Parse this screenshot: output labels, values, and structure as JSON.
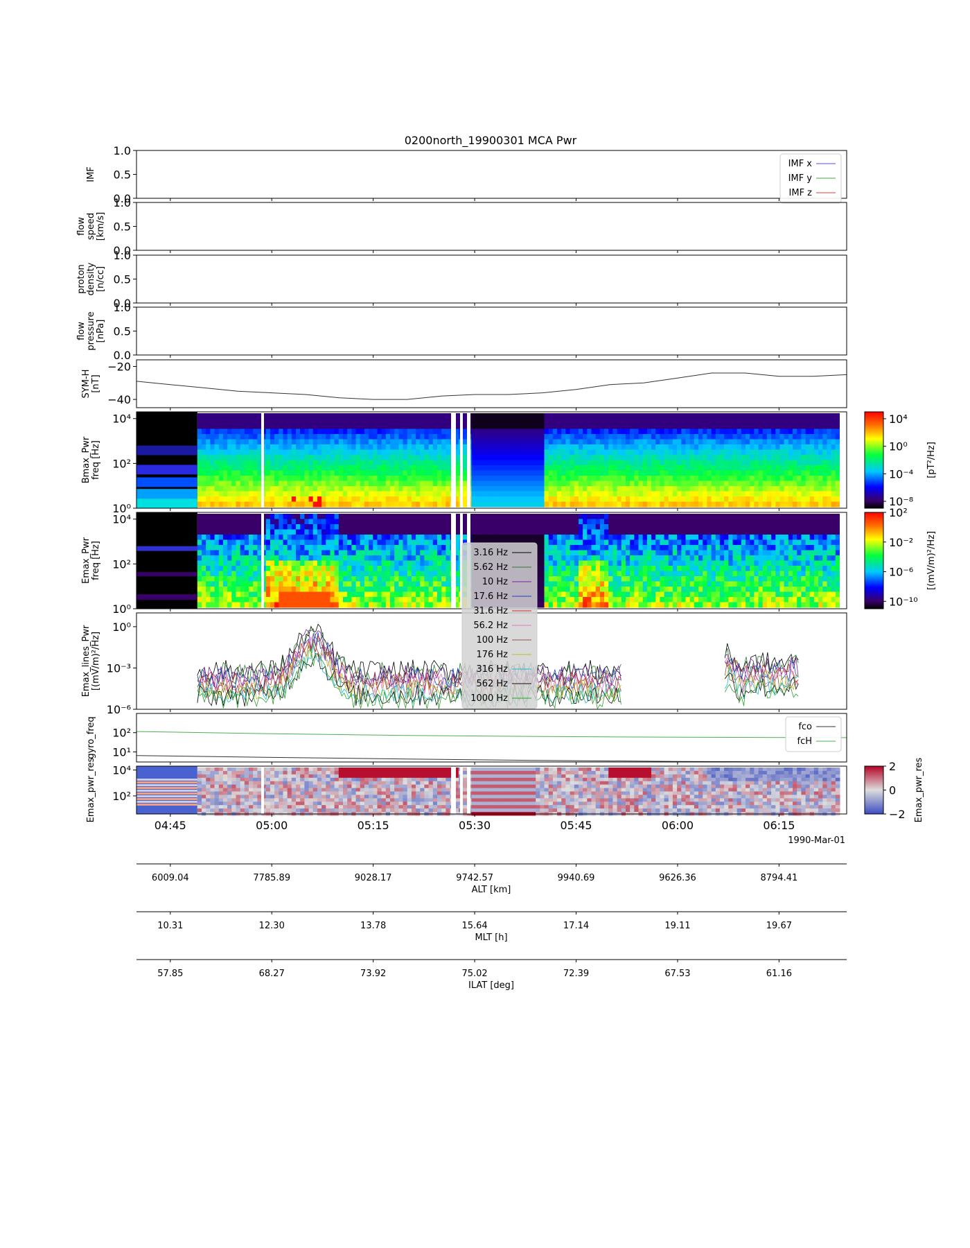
{
  "title": "0200north_19900301 MCA Pwr",
  "date_label": "1990-Mar-01",
  "time_ticks": [
    "04:45",
    "05:00",
    "05:15",
    "05:30",
    "05:45",
    "06:00",
    "06:15"
  ],
  "time_range_min": [
    280,
    385
  ],
  "chart_data": [
    {
      "id": "imf",
      "type": "line",
      "ylabel": [
        "IMF"
      ],
      "ylim": [
        0,
        1
      ],
      "yticks": [
        "0.0",
        "0.5",
        "1.0"
      ],
      "yvals": [
        0,
        0.5,
        1
      ],
      "legend": {
        "placement": "top-right",
        "entries": [
          {
            "label": "IMF x",
            "color": "#4f4fff"
          },
          {
            "label": "IMF y",
            "color": "#3fa63f"
          },
          {
            "label": "IMF z",
            "color": "#e03c3c"
          }
        ]
      }
    },
    {
      "id": "flow-speed",
      "type": "line",
      "ylabel": [
        "flow",
        "speed",
        "[km/s]"
      ],
      "ylim": [
        0,
        1
      ],
      "yticks": [
        "0.0",
        "0.5",
        "1.0"
      ],
      "yvals": [
        0,
        0.5,
        1
      ]
    },
    {
      "id": "proton-density",
      "type": "line",
      "ylabel": [
        "proton",
        "density",
        "[n/cc]"
      ],
      "ylim": [
        0,
        1
      ],
      "yticks": [
        "0.0",
        "0.5",
        "1.0"
      ],
      "yvals": [
        0,
        0.5,
        1
      ]
    },
    {
      "id": "flow-pressure",
      "type": "line",
      "ylabel": [
        "flow",
        "pressure",
        "[nPa]"
      ],
      "ylim": [
        0,
        1
      ],
      "yticks": [
        "0.0",
        "0.5",
        "1.0"
      ],
      "yvals": [
        0,
        0.5,
        1
      ]
    },
    {
      "id": "sym-h",
      "type": "line",
      "ylabel": [
        "SYM-H",
        "[nT]"
      ],
      "ylim": [
        -45,
        -16
      ],
      "yticks": [
        "−20",
        "−40"
      ],
      "yvals": [
        -20,
        -40
      ],
      "series": [
        {
          "color": "#333333",
          "x": [
            280,
            285,
            290,
            295,
            300,
            305,
            310,
            315,
            320,
            325,
            330,
            335,
            340,
            345,
            350,
            355,
            360,
            365,
            370,
            375,
            380,
            385
          ],
          "y": [
            -29,
            -31,
            -33,
            -35,
            -36,
            -37,
            -39,
            -40,
            -40,
            -38,
            -37,
            -37,
            -36,
            -34,
            -31,
            -30,
            -27,
            -24,
            -24,
            -26,
            -26,
            -25
          ]
        }
      ]
    },
    {
      "id": "bmax-pwr",
      "type": "heatmap",
      "ylabel": [
        "Bmax_Pwr",
        "freq [Hz]"
      ],
      "ylog": true,
      "ylim": [
        1,
        20000
      ],
      "yticks": [
        "10⁰",
        "10²",
        "10⁴"
      ],
      "yvals": [
        1,
        100,
        10000
      ],
      "colorbar": {
        "label": "[pT²/Hz]",
        "ticks": [
          "10⁻⁸",
          "10⁻⁴",
          "10⁰",
          "10⁴"
        ],
        "range": [
          -9,
          5
        ]
      }
    },
    {
      "id": "emax-pwr",
      "type": "heatmap",
      "ylabel": [
        "Emax_Pwr",
        "freq [Hz]"
      ],
      "ylog": true,
      "ylim": [
        1,
        20000
      ],
      "yticks": [
        "10⁰",
        "10²",
        "10⁴"
      ],
      "yvals": [
        1,
        100,
        10000
      ],
      "colorbar": {
        "label": "[(mV/m)²/Hz]",
        "ticks": [
          "10⁻¹⁰",
          "10⁻⁶",
          "10⁻²",
          "10²"
        ],
        "range": [
          -11,
          2
        ]
      }
    },
    {
      "id": "emax-lines",
      "type": "line",
      "ylabel": [
        "Emax_lines_Pwr",
        "[(mV/m)²/Hz]"
      ],
      "ylog": true,
      "ylim": [
        -6,
        1
      ],
      "yticks": [
        "10⁻⁶",
        "10⁻³",
        "10⁰"
      ],
      "yvals": [
        -6,
        -3,
        0
      ],
      "legend": {
        "placement": "center",
        "entries": [
          {
            "label": "3.16 Hz",
            "color": "#000000"
          },
          {
            "label": "5.62 Hz",
            "color": "#2e7d32"
          },
          {
            "label": "10 Hz",
            "color": "#7b1fa2"
          },
          {
            "label": "17.6 Hz",
            "color": "#1e40c8"
          },
          {
            "label": "31.6 Hz",
            "color": "#c62828"
          },
          {
            "label": "56.2 Hz",
            "color": "#e377c2"
          },
          {
            "label": "100 Hz",
            "color": "#8c564b"
          },
          {
            "label": "176 Hz",
            "color": "#bcbd22"
          },
          {
            "label": "316 Hz",
            "color": "#17becf"
          },
          {
            "label": "562 Hz",
            "color": "#111111"
          },
          {
            "label": "1000 Hz",
            "color": "#2ca02c"
          }
        ]
      }
    },
    {
      "id": "gyro-freq",
      "type": "line",
      "ylabel": [
        "gyro_freq"
      ],
      "ylog": true,
      "ylim": [
        3,
        1000
      ],
      "yticks": [
        "10¹",
        "10²"
      ],
      "yvals": [
        10,
        100
      ],
      "legend": {
        "placement": "top-right",
        "entries": [
          {
            "label": "fco",
            "color": "#333333"
          },
          {
            "label": "fcH",
            "color": "#4caf50"
          }
        ]
      },
      "series": [
        {
          "name": "fco",
          "color": "#333333",
          "x": [
            280,
            300,
            320,
            340,
            360,
            385
          ],
          "y": [
            6.5,
            5.2,
            4.3,
            3.6,
            3.2,
            3.0
          ]
        },
        {
          "name": "fcH",
          "color": "#4caf50",
          "x": [
            280,
            300,
            320,
            340,
            360,
            385
          ],
          "y": [
            115,
            88,
            72,
            63,
            58,
            55
          ]
        }
      ]
    },
    {
      "id": "emax-pwr-res",
      "type": "heatmap",
      "ylabel": [
        "Emax_pwr_res"
      ],
      "ylog": true,
      "ylim": [
        4,
        20000
      ],
      "yticks": [
        "10²",
        "10⁴"
      ],
      "yvals": [
        100,
        10000
      ],
      "colorbar": {
        "label": "Emax_pwr_res",
        "ticks": [
          "−2",
          "0",
          "2"
        ],
        "range": [
          -2,
          2
        ]
      }
    }
  ],
  "orbit_axes": [
    {
      "label": "ALT [km]",
      "values": [
        "6009.04",
        "7785.89",
        "9028.17",
        "9742.57",
        "9940.69",
        "9626.36",
        "8794.41"
      ]
    },
    {
      "label": "MLT [h]",
      "values": [
        "10.31",
        "12.30",
        "13.78",
        "15.64",
        "17.14",
        "19.11",
        "19.67"
      ]
    },
    {
      "label": "ILAT [deg]",
      "values": [
        "57.85",
        "68.27",
        "73.92",
        "75.02",
        "72.39",
        "67.53",
        "61.16"
      ]
    }
  ]
}
